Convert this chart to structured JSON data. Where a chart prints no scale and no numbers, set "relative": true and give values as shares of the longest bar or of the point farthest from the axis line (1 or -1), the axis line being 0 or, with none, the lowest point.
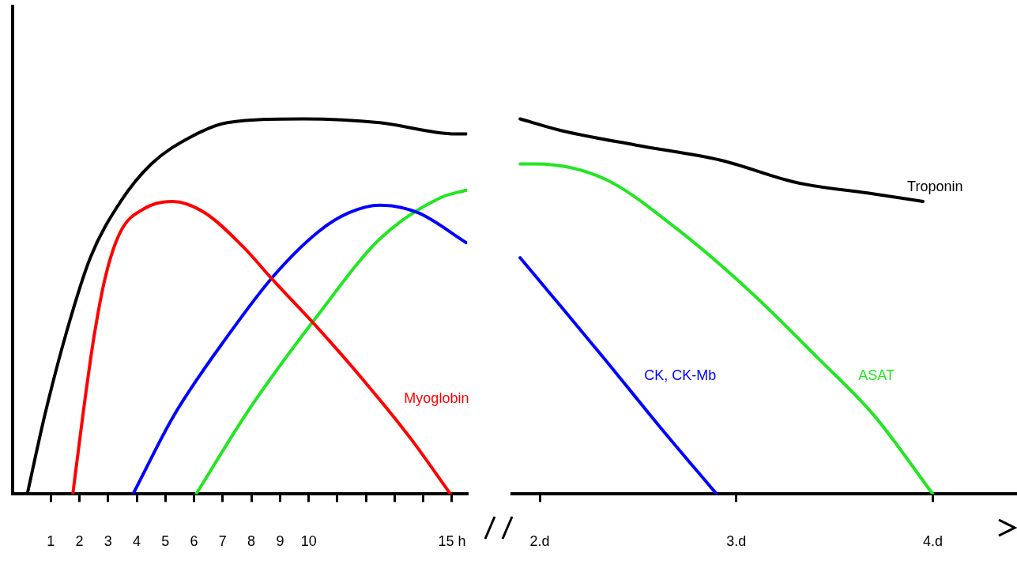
{
  "chart_data": [
    {
      "type": "line",
      "relative": true,
      "legend": false,
      "grid": false,
      "marker": "none",
      "line_style": "solid",
      "tick_labels": "x",
      "xlim": [
        -0.33,
        15.53
      ],
      "xticks": [
        1,
        2,
        3,
        4,
        5,
        6,
        7,
        8,
        9,
        10,
        {
          "value": 11,
          "label": null
        },
        {
          "value": 12,
          "label": null
        },
        {
          "value": 13,
          "label": null
        },
        {
          "value": 14,
          "label": null
        },
        {
          "value": 15,
          "label": "15 h"
        }
      ],
      "series": [
        {
          "color": "#000000",
          "x": [
            0.18,
            0.79,
            1.58,
            2.38,
            3.44,
            4.51,
            5.84,
            7.16,
            9.82,
            12.48,
            15.13,
            15.5
          ],
          "values": [
            0,
            0.21,
            0.44,
            0.63,
            0.78,
            0.88,
            0.95,
            0.99,
            1,
            0.99,
            0.96,
            0.96
          ]
        },
        {
          "name": "Myoglobin",
          "color": "#ff0000",
          "x": [
            1.77,
            2.12,
            2.51,
            2.91,
            3.44,
            4.24,
            5.25,
            6.37,
            7.7,
            8.76,
            10.35,
            11.95,
            13.54,
            14.95
          ],
          "values": [
            0,
            0.21,
            0.42,
            0.58,
            0.7,
            0.76,
            0.78,
            0.75,
            0.66,
            0.57,
            0.44,
            0.3,
            0.15,
            0
          ]
        },
        {
          "color": "#0000ff",
          "x": [
            3.87,
            5.3,
            7.16,
            8.76,
            10.35,
            11.41,
            12.48,
            13.81,
            15.5
          ],
          "values": [
            0,
            0.21,
            0.42,
            0.58,
            0.7,
            0.75,
            0.77,
            0.75,
            0.67
          ]
        },
        {
          "color": "#22e622",
          "x": [
            6.07,
            7.96,
            10.35,
            12.48,
            14.6,
            15.5
          ],
          "values": [
            0,
            0.23,
            0.48,
            0.68,
            0.79,
            0.81
          ]
        }
      ]
    },
    {
      "type": "line",
      "relative": true,
      "legend": false,
      "grid": false,
      "marker": "none",
      "line_style": "solid",
      "tick_labels": "x",
      "xlim": [
        1.86,
        4.42
      ],
      "xticks": [
        {
          "value": 2,
          "label": "2.d"
        },
        {
          "value": 3,
          "label": "3.d"
        },
        {
          "value": 4,
          "label": "4.d"
        }
      ],
      "series": [
        {
          "name": "Troponin",
          "color": "#000000",
          "x": [
            1.9,
            2.1,
            2.49,
            2.92,
            3.31,
            3.7,
            3.95
          ],
          "values": [
            1,
            0.97,
            0.93,
            0.89,
            0.83,
            0.8,
            0.78
          ]
        },
        {
          "name": "CK, CK-Mb",
          "color": "#0000ff",
          "x": [
            1.9,
            2.06,
            2.33,
            2.61,
            2.9
          ],
          "values": [
            0.63,
            0.53,
            0.36,
            0.18,
            0
          ]
        },
        {
          "name": "ASAT",
          "color": "#22e622",
          "x": [
            1.9,
            1.98,
            2.33,
            2.69,
            3.07,
            3.42,
            3.7,
            4
          ],
          "values": [
            0.88,
            0.88,
            0.84,
            0.71,
            0.54,
            0.36,
            0.21,
            0
          ]
        }
      ]
    }
  ]
}
